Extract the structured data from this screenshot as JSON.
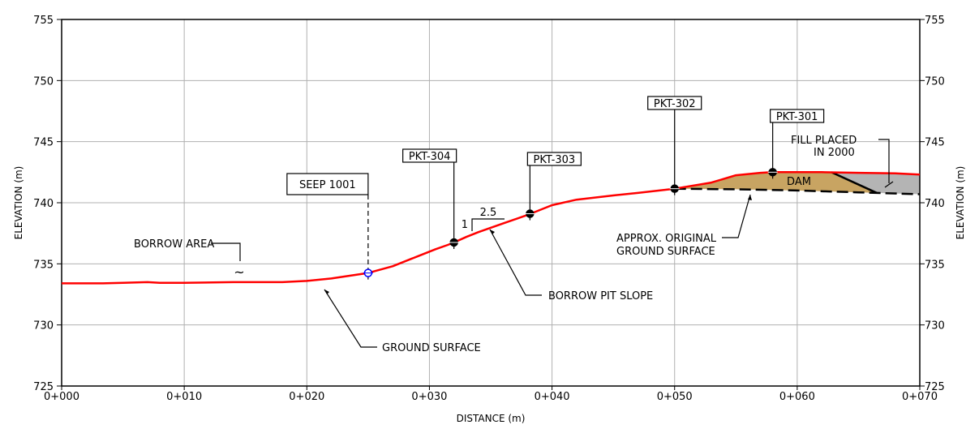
{
  "chart_data": {
    "type": "line",
    "xlabel": "DISTANCE (m)",
    "ylabel": "ELEVATION (m)",
    "xlim": [
      0,
      70
    ],
    "ylim": [
      725,
      755
    ],
    "x_ticks": [
      {
        "value": 0,
        "label": "0+000"
      },
      {
        "value": 10,
        "label": "0+010"
      },
      {
        "value": 20,
        "label": "0+020"
      },
      {
        "value": 30,
        "label": "0+030"
      },
      {
        "value": 40,
        "label": "0+040"
      },
      {
        "value": 50,
        "label": "0+050"
      },
      {
        "value": 60,
        "label": "0+060"
      },
      {
        "value": 70,
        "label": "0+070"
      }
    ],
    "y_ticks": [
      725,
      730,
      735,
      740,
      745,
      750,
      755
    ],
    "grid": true,
    "colors": {
      "ground": "#ff0000",
      "dam_fill": "#c8a462",
      "placed_fill": "#b4b4b4",
      "seep_marker": "#0000ff",
      "grid": "#b0b0b0"
    },
    "ground_surface": {
      "x": [
        0,
        3.3,
        5,
        7,
        8,
        10,
        14,
        16,
        18,
        20,
        22,
        24,
        25,
        27,
        29,
        30.5,
        31.5,
        32,
        33,
        34,
        36,
        38,
        39,
        40,
        42,
        45,
        47,
        50,
        53,
        55,
        57,
        58,
        60,
        62,
        65,
        68,
        70
      ],
      "y": [
        733.4,
        733.4,
        733.45,
        733.5,
        733.45,
        733.45,
        733.5,
        733.5,
        733.5,
        733.6,
        733.8,
        734.1,
        734.25,
        734.8,
        735.6,
        736.2,
        736.55,
        736.75,
        737.2,
        737.6,
        738.3,
        739.0,
        739.4,
        739.8,
        740.25,
        740.6,
        740.8,
        741.15,
        741.65,
        742.25,
        742.45,
        742.5,
        742.5,
        742.5,
        742.45,
        742.4,
        742.3
      ]
    },
    "original_ground": {
      "x": [
        50,
        55,
        60,
        65,
        70
      ],
      "y": [
        741.15,
        741.1,
        741.0,
        740.85,
        740.7
      ]
    },
    "dam_polygon": {
      "x": [
        50,
        53,
        55,
        57,
        58,
        60,
        62.8,
        66.5,
        60,
        55
      ],
      "y": [
        741.15,
        741.65,
        742.25,
        742.45,
        742.5,
        742.5,
        742.5,
        740.8,
        741.0,
        741.1
      ]
    },
    "fill_polygon": {
      "x": [
        62.8,
        65,
        68,
        70,
        70,
        66.5
      ],
      "y": [
        742.5,
        742.45,
        742.4,
        742.3,
        740.7,
        740.8
      ]
    },
    "points": [
      {
        "label": "SEEP 1001",
        "x": 25,
        "y": 734.25
      },
      {
        "label": "PKT-304",
        "x": 32,
        "y": 736.75
      },
      {
        "label": "PKT-303",
        "x": 38.2,
        "y": 739.1
      },
      {
        "label": "PKT-302",
        "x": 50,
        "y": 741.15
      },
      {
        "label": "PKT-301",
        "x": 58,
        "y": 742.5
      }
    ],
    "annotations": [
      {
        "text": "BORROW AREA",
        "x": 14.5,
        "y": 734.8
      },
      {
        "text": "GROUND SURFACE",
        "x": 21.5,
        "y": 733.7
      },
      {
        "text": "BORROW PIT SLOPE",
        "x": 35.3,
        "y": 738.3
      },
      {
        "text": "APPROX. ORIGINAL GROUND SURFACE",
        "x": 56.5,
        "y": 741.0
      },
      {
        "text": "DAM",
        "x": 60,
        "y": 741.8
      },
      {
        "text": "FILL PLACED IN 2000",
        "x": 67.2,
        "y": 741.5
      }
    ],
    "slope": {
      "run": "2.5",
      "rise": "1"
    }
  },
  "labels": {
    "borrow_area": "BORROW AREA",
    "borrow_symbol": "~",
    "ground_surface": "GROUND SURFACE",
    "borrow_pit_slope": "BORROW PIT SLOPE",
    "orig_line1": "APPROX. ORIGINAL",
    "orig_line2": "GROUND SURFACE",
    "dam": "DAM",
    "fill_line1": "FILL PLACED",
    "fill_line2": "IN 2000"
  }
}
